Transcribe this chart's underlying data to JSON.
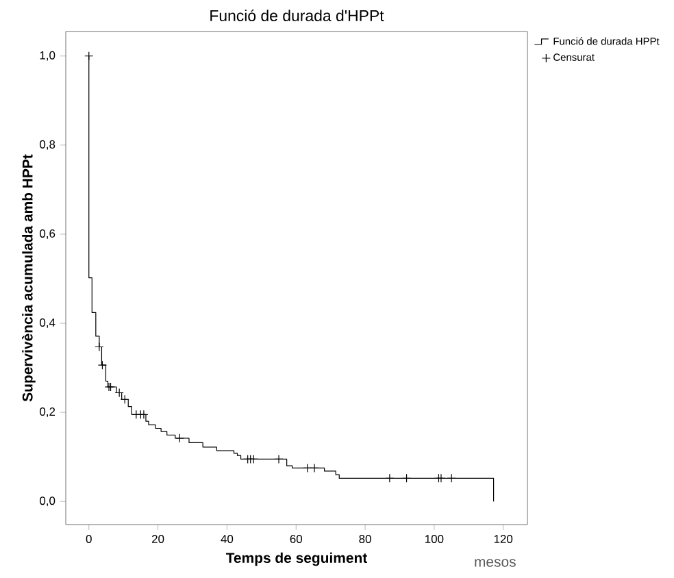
{
  "chart_data": {
    "type": "step",
    "title": "Funció de durada d'HPPt",
    "xlabel": "Temps de seguiment",
    "ylabel": "Supervivència acumulada amb HPPt",
    "annotations": [
      "mesos"
    ],
    "xlim": [
      -6.7,
      127
    ],
    "ylim": [
      -0.052,
      1.055
    ],
    "xticks": [
      0,
      20,
      40,
      60,
      80,
      100,
      120
    ],
    "yticks": [
      {
        "value": 0,
        "label": "0,0"
      },
      {
        "value": 0.2,
        "label": "0,2"
      },
      {
        "value": 0.4,
        "label": "0,4"
      },
      {
        "value": 0.6,
        "label": "0,6"
      },
      {
        "value": 0.8,
        "label": "0,8"
      },
      {
        "value": 1.0,
        "label": "1,0"
      }
    ],
    "legend": "top right",
    "series": [
      {
        "name": "Funció de durada HPPt",
        "color": "#000000",
        "x": [
          0,
          0,
          0.9,
          2,
          3,
          3.7,
          4.9,
          5.5,
          8,
          9.5,
          11.4,
          12.4,
          16.5,
          17.3,
          19.3,
          20.9,
          22.6,
          25,
          29,
          33,
          37,
          42,
          43,
          44,
          57.3,
          58.9,
          68.2,
          71.5,
          72.5,
          117.2,
          117.2
        ],
        "values": [
          1.0,
          0.502,
          0.424,
          0.371,
          0.347,
          0.306,
          0.27,
          0.257,
          0.244,
          0.229,
          0.213,
          0.195,
          0.18,
          0.172,
          0.164,
          0.157,
          0.149,
          0.142,
          0.132,
          0.122,
          0.114,
          0.108,
          0.103,
          0.095,
          0.08,
          0.075,
          0.068,
          0.06,
          0.052,
          0.052,
          0
        ]
      },
      {
        "name": "Censurat",
        "type": "scatter",
        "marker": "cross",
        "color": "#000000",
        "x": [
          0,
          3,
          3.9,
          5.8,
          6.3,
          8.8,
          10.4,
          13.7,
          15,
          15.9,
          26.3,
          46,
          46.8,
          47.7,
          55,
          63.3,
          65.3,
          87.1,
          92,
          101.3,
          102,
          105
        ],
        "values": [
          1.0,
          0.347,
          0.306,
          0.257,
          0.257,
          0.244,
          0.229,
          0.195,
          0.195,
          0.195,
          0.142,
          0.095,
          0.095,
          0.095,
          0.095,
          0.075,
          0.075,
          0.052,
          0.052,
          0.052,
          0.052,
          0.052
        ]
      }
    ]
  }
}
